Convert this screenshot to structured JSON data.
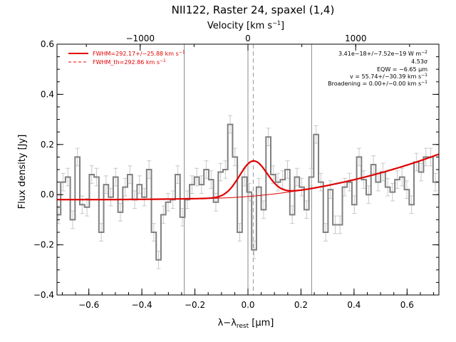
{
  "chart_data": {
    "type": "line",
    "title": "NII122, Raster 24, spaxel (1,4)",
    "xlabel_bottom": "λ−λ",
    "xlabel_bottom_sub": "rest",
    "xlabel_bottom_unit": " [μm]",
    "xlabel_top": "Velocity [km s",
    "xlabel_top_sup": "−1",
    "xlabel_top_end": "]",
    "ylabel": "Flux density [Jy]",
    "xlim": [
      -0.72,
      0.72
    ],
    "ylim": [
      -0.4,
      0.6
    ],
    "xticks": [
      -0.6,
      -0.4,
      -0.2,
      0.0,
      0.2,
      0.4,
      0.6
    ],
    "xtick_labels": [
      "−0.6",
      "−0.4",
      "−0.2",
      "0.0",
      "0.2",
      "0.4",
      "0.6"
    ],
    "yticks": [
      -0.4,
      -0.2,
      0.0,
      0.2,
      0.4,
      0.6
    ],
    "ytick_labels": [
      "−0.4",
      "−0.2",
      "0.0",
      "0.2",
      "0.4",
      "0.6"
    ],
    "top_ticks_kms": [
      -1000,
      0,
      1000
    ],
    "top_tick_labels": [
      "−1000",
      "0",
      "1000"
    ],
    "vertical_lines": [
      -0.24,
      0.0,
      0.24
    ],
    "dashed_line": 0.02,
    "series": [
      {
        "name": "spectrum",
        "style": "step",
        "color": "#808080",
        "x": [
          -0.715,
          -0.697,
          -0.679,
          -0.661,
          -0.643,
          -0.625,
          -0.607,
          -0.589,
          -0.571,
          -0.553,
          -0.535,
          -0.517,
          -0.499,
          -0.481,
          -0.463,
          -0.445,
          -0.427,
          -0.409,
          -0.391,
          -0.373,
          -0.355,
          -0.337,
          -0.319,
          -0.301,
          -0.283,
          -0.265,
          -0.247,
          -0.229,
          -0.211,
          -0.193,
          -0.175,
          -0.157,
          -0.139,
          -0.121,
          -0.103,
          -0.085,
          -0.067,
          -0.049,
          -0.031,
          -0.013,
          0.005,
          0.023,
          0.041,
          0.059,
          0.077,
          0.095,
          0.113,
          0.131,
          0.149,
          0.167,
          0.185,
          0.203,
          0.221,
          0.239,
          0.257,
          0.275,
          0.293,
          0.311,
          0.329,
          0.347,
          0.365,
          0.383,
          0.401,
          0.419,
          0.437,
          0.455,
          0.473,
          0.491,
          0.509,
          0.527,
          0.545,
          0.563,
          0.581,
          0.599,
          0.617,
          0.635,
          0.653,
          0.671,
          0.689,
          0.707
        ],
        "y": [
          -0.08,
          0.05,
          0.07,
          -0.1,
          0.15,
          -0.04,
          -0.05,
          0.08,
          0.07,
          -0.15,
          0.04,
          -0.01,
          0.07,
          -0.07,
          0.03,
          0.08,
          -0.02,
          0.04,
          -0.01,
          0.1,
          -0.15,
          -0.26,
          -0.08,
          -0.03,
          -0.02,
          0.08,
          -0.09,
          -0.02,
          0.04,
          0.07,
          0.04,
          0.1,
          0.06,
          -0.03,
          0.09,
          0.1,
          0.28,
          0.15,
          -0.15,
          0.07,
          0.01,
          -0.22,
          0.03,
          -0.06,
          0.23,
          0.08,
          0.05,
          0.06,
          0.1,
          -0.08,
          0.07,
          0.03,
          -0.06,
          0.07,
          0.24,
          0.05,
          -0.15,
          0.02,
          -0.12,
          -0.12,
          0.03,
          0.05,
          -0.04,
          0.15,
          0.06,
          0.0,
          0.12,
          0.05,
          0.09,
          0.03,
          0.01,
          0.06,
          0.07,
          0.02,
          -0.04,
          0.13,
          0.09,
          0.15,
          0.15,
          0.05
        ],
        "error": 0.035
      },
      {
        "name": "FWHM=292.17+/−25.88 km s",
        "style": "solid",
        "color": "#e00000",
        "baseline": {
          "x0": -0.15,
          "c0": -0.015,
          "quad": 0.38,
          "lin": 0.02
        },
        "gaussian": {
          "center": 0.02,
          "amplitude": 0.14,
          "sigma": 0.052
        }
      },
      {
        "name": "FWHM_th=292.86 km s",
        "style": "dashed",
        "color": "#e00000"
      }
    ],
    "legend_position": "top-left",
    "annotations": [
      "3.41e−18+/−7.52e−19 W m",
      "4.53σ",
      "EQW = −6.65 μm",
      "v = 55.74+/−30.39 km s",
      "Broadening = 0.00+/−0.00 km s"
    ],
    "annotation_sups": [
      "−2",
      "",
      "",
      "−1",
      "−1"
    ],
    "legend_sup": "−1"
  }
}
